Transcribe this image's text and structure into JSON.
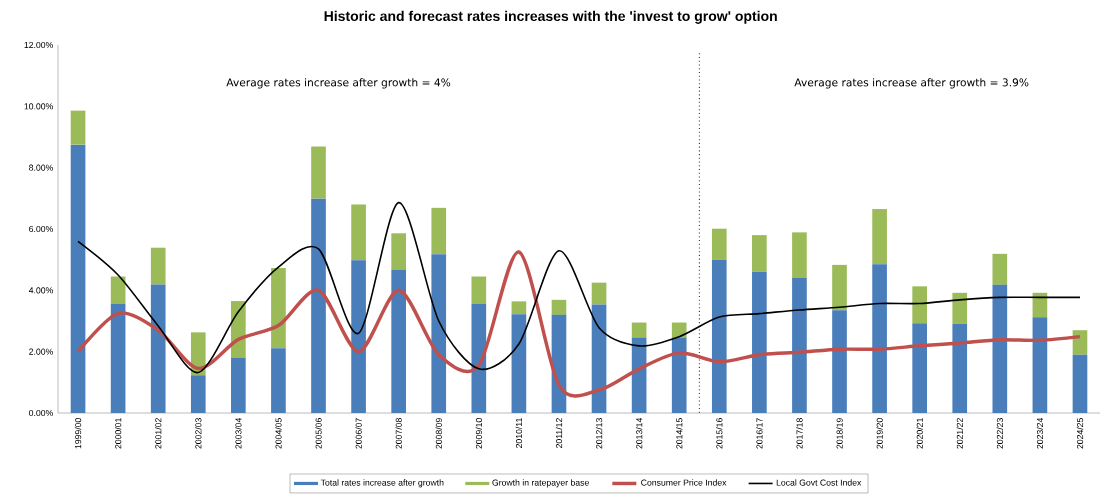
{
  "chart_data": {
    "type": "bar",
    "title": "Historic and forecast rates increases with the 'invest to grow' option",
    "categories": [
      "1999/00",
      "2000/01",
      "2001/02",
      "2002/03",
      "2003/04",
      "2004/05",
      "2005/06",
      "2006/07",
      "2007/08",
      "2008/09",
      "2009/10",
      "2010/11",
      "2011/12",
      "2012/13",
      "2013/14",
      "2014/15",
      "2015/16",
      "2016/17",
      "2017/18",
      "2018/19",
      "2019/20",
      "2020/21",
      "2021/22",
      "2022/23",
      "2023/24",
      "2024/25"
    ],
    "stacked": true,
    "series": [
      {
        "name": "Total rates increase after growth",
        "color": "#4a7ebb",
        "values": [
          8.75,
          3.56,
          4.19,
          1.23,
          1.81,
          2.11,
          6.99,
          4.98,
          4.66,
          5.18,
          3.56,
          3.22,
          3.2,
          3.54,
          2.46,
          2.46,
          4.99,
          4.6,
          4.4,
          3.35,
          4.85,
          2.93,
          2.91,
          4.18,
          3.12,
          1.9
        ]
      },
      {
        "name": "Growth in ratepayer base",
        "color": "#9bbb59",
        "values": [
          1.11,
          0.89,
          1.2,
          1.4,
          1.84,
          2.62,
          1.7,
          1.82,
          1.2,
          1.51,
          0.89,
          0.42,
          0.49,
          0.71,
          0.49,
          0.49,
          1.02,
          1.2,
          1.49,
          1.48,
          1.8,
          1.2,
          1.01,
          1.01,
          0.8,
          0.8
        ]
      },
      {
        "name": "Consumer Price Index",
        "type": "line",
        "color": "#c0504d",
        "values": [
          2.0,
          3.25,
          2.7,
          1.45,
          2.4,
          2.85,
          4.0,
          2.0,
          4.0,
          1.9,
          1.55,
          5.25,
          0.9,
          0.75,
          1.44,
          1.96,
          1.67,
          1.9,
          1.98,
          2.08,
          2.08,
          2.19,
          2.28,
          2.39,
          2.37,
          2.49
        ]
      },
      {
        "name": "Local Govt Cost Index",
        "type": "line",
        "color": "#000000",
        "values": [
          5.6,
          4.5,
          2.84,
          1.32,
          3.3,
          4.76,
          5.35,
          2.6,
          6.86,
          3.0,
          1.44,
          2.25,
          5.29,
          2.78,
          2.19,
          2.49,
          3.13,
          3.24,
          3.36,
          3.45,
          3.57,
          3.57,
          3.69,
          3.77,
          3.77,
          3.77
        ]
      }
    ],
    "ylim": [
      0,
      12
    ],
    "yticks": [
      {
        "value": 0,
        "label": "0.00%"
      },
      {
        "value": 2,
        "label": "2.00%"
      },
      {
        "value": 4,
        "label": "4.00%"
      },
      {
        "value": 6,
        "label": "6.00%"
      },
      {
        "value": 8,
        "label": "8.00%"
      },
      {
        "value": 10,
        "label": "10.00%"
      },
      {
        "value": 12,
        "label": "12.00%"
      }
    ],
    "annotations": [
      "Average rates increase after growth = 4%",
      "Average rates increase after growth = 3.9%"
    ],
    "legend": "bottom"
  }
}
